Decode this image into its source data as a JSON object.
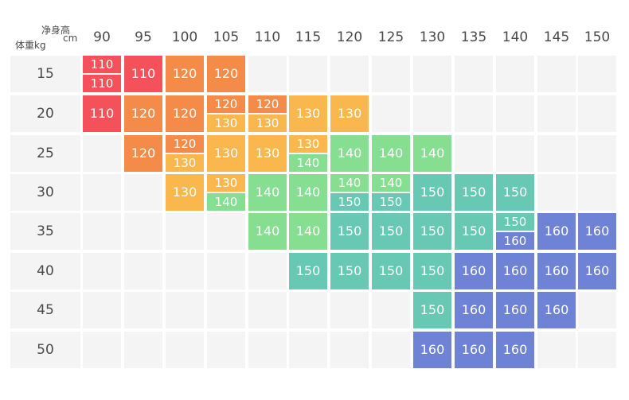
{
  "corner": {
    "height_label": "净身高",
    "height_unit": "cm",
    "weight_label": "体重kg"
  },
  "heights": [
    "90",
    "95",
    "100",
    "105",
    "110",
    "115",
    "120",
    "125",
    "130",
    "135",
    "140",
    "145",
    "150"
  ],
  "weights": [
    "15",
    "20",
    "25",
    "30",
    "35",
    "40",
    "45",
    "50"
  ],
  "colors": {
    "110": "#f4515a",
    "120": "#f58b48",
    "130": "#f9b74e",
    "140": "#86df90",
    "150": "#67c8b4",
    "160": "#6f83d6",
    "empty": "#f4f4f4"
  },
  "size_grid": [
    [
      [
        "110",
        "110"
      ],
      [
        "110"
      ],
      [
        "120"
      ],
      [
        "120"
      ],
      [],
      [],
      [],
      [],
      [],
      [],
      [],
      [],
      []
    ],
    [
      [
        "110"
      ],
      [
        "120"
      ],
      [
        "120"
      ],
      [
        "120",
        "130"
      ],
      [
        "120",
        "130"
      ],
      [
        "130"
      ],
      [
        "130"
      ],
      [],
      [],
      [],
      [],
      [],
      []
    ],
    [
      [],
      [
        "120"
      ],
      [
        "120",
        "130"
      ],
      [
        "130"
      ],
      [
        "130"
      ],
      [
        "130",
        "140"
      ],
      [
        "140"
      ],
      [
        "140"
      ],
      [
        "140"
      ],
      [],
      [],
      [],
      []
    ],
    [
      [],
      [],
      [
        "130"
      ],
      [
        "130",
        "140"
      ],
      [
        "140"
      ],
      [
        "140"
      ],
      [
        "140",
        "150"
      ],
      [
        "140",
        "150"
      ],
      [
        "150"
      ],
      [
        "150"
      ],
      [
        "150"
      ],
      [],
      []
    ],
    [
      [],
      [],
      [],
      [],
      [
        "140"
      ],
      [
        "140"
      ],
      [
        "150"
      ],
      [
        "150"
      ],
      [
        "150"
      ],
      [
        "150"
      ],
      [
        "150",
        "160"
      ],
      [
        "160"
      ],
      [
        "160"
      ]
    ],
    [
      [],
      [],
      [],
      [],
      [],
      [
        "150"
      ],
      [
        "150"
      ],
      [
        "150"
      ],
      [
        "150"
      ],
      [
        "160"
      ],
      [
        "160"
      ],
      [
        "160"
      ],
      [
        "160"
      ]
    ],
    [
      [],
      [],
      [],
      [],
      [],
      [],
      [],
      [],
      [
        "150"
      ],
      [
        "160"
      ],
      [
        "160"
      ],
      [
        "160"
      ],
      []
    ],
    [
      [],
      [],
      [],
      [],
      [],
      [],
      [],
      [],
      [
        "160"
      ],
      [
        "160"
      ],
      [
        "160"
      ],
      [],
      []
    ]
  ]
}
